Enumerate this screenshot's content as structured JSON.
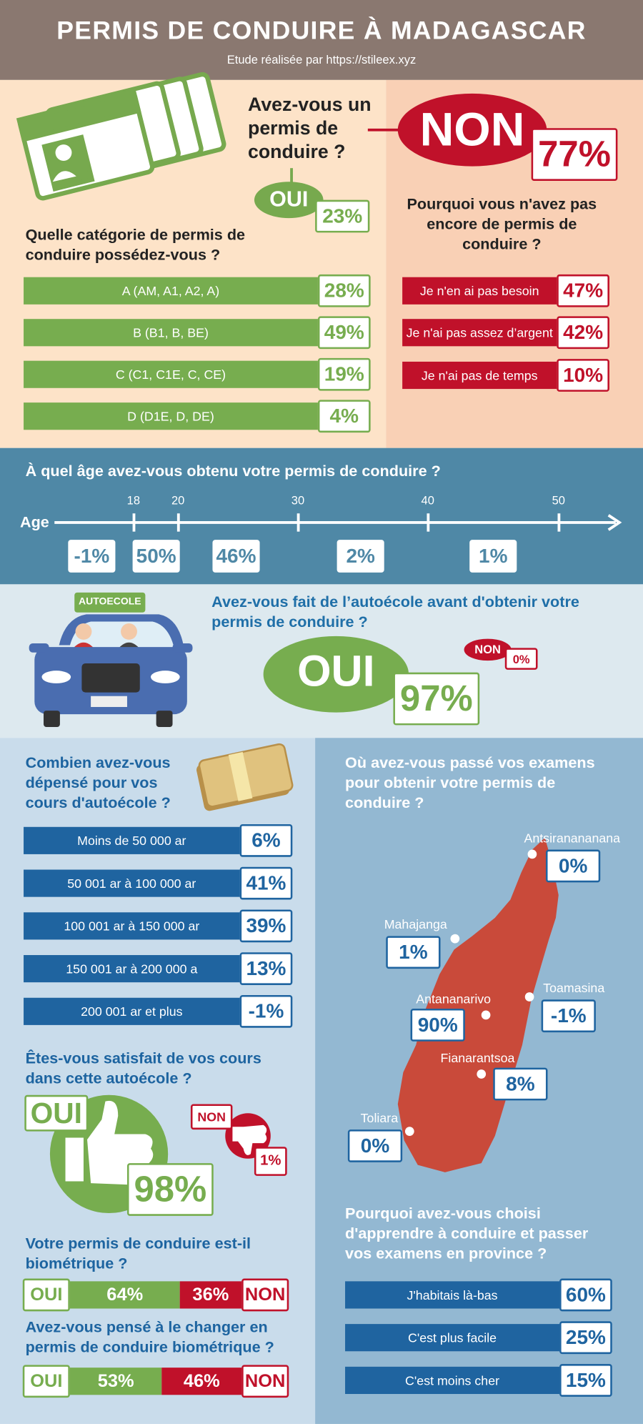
{
  "header": {
    "title": "PERMIS DE CONDUIRE À MADAGASCAR",
    "subtitle": "Etude réalisée par https://stileex.xyz"
  },
  "permis": {
    "question": "Avez-vous un permis de conduire ?",
    "non": {
      "label": "NON",
      "value": "77%"
    },
    "oui": {
      "label": "OUI",
      "value": "23%"
    }
  },
  "categories": {
    "question": "Quelle catégorie de permis de conduire possédez-vous ?",
    "items": [
      {
        "label": "A (AM, A1, A2, A)",
        "value": "28%"
      },
      {
        "label": "B (B1, B, BE)",
        "value": "49%"
      },
      {
        "label": "C (C1, C1E, C, CE)",
        "value": "19%"
      },
      {
        "label": "D (D1E, D, DE)",
        "value": "4%"
      }
    ]
  },
  "reasons": {
    "question": "Pourquoi vous n'avez pas encore de permis de conduire ?",
    "items": [
      {
        "label": "Je n'en ai pas besoin",
        "value": "47%"
      },
      {
        "label": "Je n'ai pas assez d’argent",
        "value": "42%"
      },
      {
        "label": "Je n'ai pas de temps",
        "value": "10%"
      }
    ]
  },
  "age": {
    "question": "À quel âge avez-vous obtenu votre permis de conduire ?",
    "axis_label": "Age",
    "ticks": [
      "18",
      "20",
      "30",
      "40",
      "50"
    ],
    "values": [
      "-1%",
      "50%",
      "46%",
      "2%",
      "1%"
    ]
  },
  "autoecole": {
    "badge": "AUTOECOLE",
    "question": "Avez-vous fait de l’autoécole avant d'obtenir votre permis de conduire ?",
    "oui": {
      "label": "OUI",
      "value": "97%"
    },
    "non": {
      "label": "NON",
      "value": "0%"
    }
  },
  "cost": {
    "question": "Combien avez-vous dépensé pour vos cours d'autoécole ?",
    "items": [
      {
        "label": "Moins de 50 000 ar",
        "value": "6%"
      },
      {
        "label": "50 001 ar à 100 000 ar",
        "value": "41%"
      },
      {
        "label": "100 001 ar à 150 000 ar",
        "value": "39%"
      },
      {
        "label": "150 001 ar à 200 000 a",
        "value": "13%"
      },
      {
        "label": "200 001 ar et plus",
        "value": "-1%"
      }
    ]
  },
  "satisfaction": {
    "question": "Êtes-vous satisfait de vos cours dans cette autoécole ?",
    "oui": {
      "label": "OUI",
      "value": "98%"
    },
    "non": {
      "label": "NON",
      "value": "1%"
    }
  },
  "biometric": {
    "question": "Votre permis de conduire est-il biométrique ?",
    "oui": {
      "label": "OUI",
      "value": "64%"
    },
    "non": {
      "label": "NON",
      "value": "36%"
    }
  },
  "change": {
    "question": "Avez-vous pensé à le changer en permis de conduire biométrique ?",
    "oui": {
      "label": "OUI",
      "value": "53%"
    },
    "non": {
      "label": "NON",
      "value": "46%"
    }
  },
  "exams": {
    "question": "Où avez-vous passé vos examens pour obtenir votre permis de conduire ?",
    "cities": [
      {
        "name": "Antsiranananana",
        "value": "0%"
      },
      {
        "name": "Mahajanga",
        "value": "1%"
      },
      {
        "name": "Toamasina",
        "value": "-1%"
      },
      {
        "name": "Antananarivo",
        "value": "90%"
      },
      {
        "name": "Fianarantsoa",
        "value": "8%"
      },
      {
        "name": "Toliara",
        "value": "0%"
      }
    ]
  },
  "province": {
    "question": "Pourquoi avez-vous choisi d'apprendre à conduire et passer vos examens en province ?",
    "items": [
      {
        "label": "J'habitais là-bas",
        "value": "60%"
      },
      {
        "label": "C'est plus facile",
        "value": "25%"
      },
      {
        "label": "C'est moins cher",
        "value": "15%"
      }
    ]
  }
}
